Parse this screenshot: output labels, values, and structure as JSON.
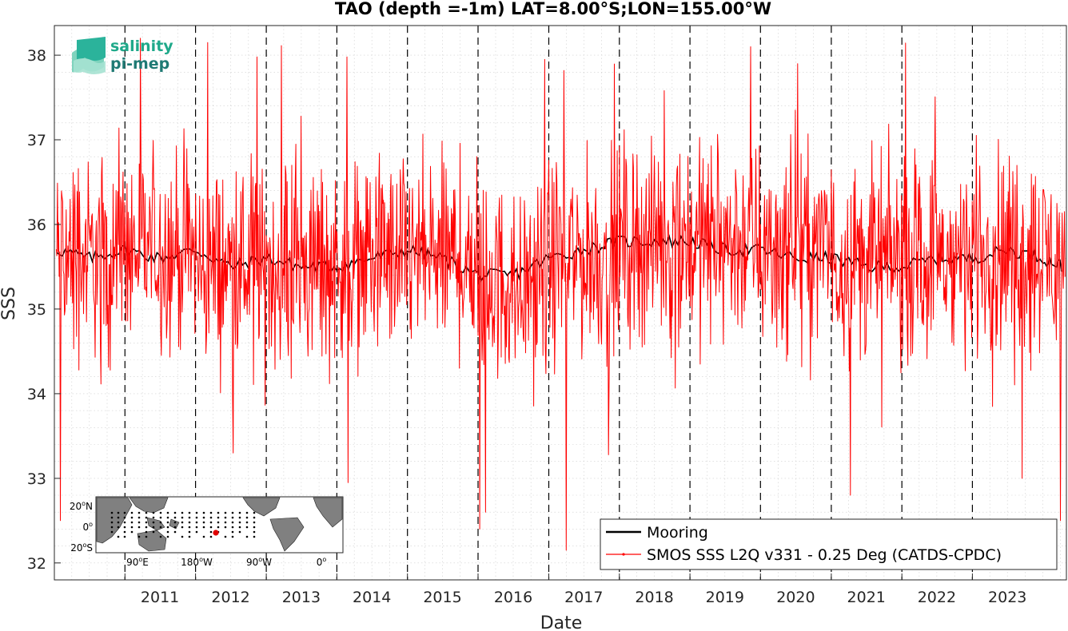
{
  "chart_data": {
    "type": "line",
    "title": "TAO (depth =-1m) LAT=8.00°S;LON=155.00°W",
    "xlabel": "Date",
    "ylabel": "SSS",
    "xlim": [
      "2010-01-01",
      "2024-05-01"
    ],
    "ylim": [
      31.8,
      38.35
    ],
    "x_ticks": [
      "2011",
      "2012",
      "2013",
      "2014",
      "2015",
      "2016",
      "2017",
      "2018",
      "2019",
      "2020",
      "2021",
      "2022",
      "2023"
    ],
    "y_ticks": [
      32,
      33,
      34,
      35,
      36,
      37,
      38
    ],
    "grid": "minor dotted",
    "year_boundaries_dashed": true,
    "legend": {
      "placement": "bottom-right",
      "entries": [
        "Mooring",
        "SMOS SSS L2Q v331 - 0.25 Deg (CATDS-CPDC)"
      ]
    },
    "series": [
      {
        "name": "Mooring",
        "color": "#000000",
        "description_points": [
          [
            "2010-01-15",
            35.7
          ],
          [
            "2010-07-01",
            35.6
          ],
          [
            "2011-01-01",
            35.7
          ],
          [
            "2011-07-01",
            35.6
          ],
          [
            "2012-01-01",
            35.7
          ],
          [
            "2012-07-01",
            35.5
          ],
          [
            "2013-01-01",
            35.6
          ],
          [
            "2013-07-01",
            35.5
          ],
          [
            "2014-01-01",
            35.5
          ],
          [
            "2014-07-01",
            35.6
          ],
          [
            "2015-01-01",
            35.7
          ],
          [
            "2015-07-01",
            35.6
          ],
          [
            "2016-01-01",
            35.4
          ],
          [
            "2016-07-01",
            35.4
          ],
          [
            "2017-01-01",
            35.6
          ],
          [
            "2017-07-01",
            35.7
          ],
          [
            "2018-01-01",
            35.8
          ],
          [
            "2018-07-01",
            35.8
          ],
          [
            "2019-01-01",
            35.8
          ],
          [
            "2019-07-01",
            35.7
          ],
          [
            "2020-01-01",
            35.7
          ],
          [
            "2020-07-01",
            35.6
          ],
          [
            "2021-01-01",
            35.6
          ],
          [
            "2021-07-01",
            35.5
          ],
          [
            "2022-01-01",
            35.5
          ],
          [
            "2022-07-01",
            35.6
          ],
          [
            "2023-01-01",
            35.6
          ],
          [
            "2023-07-01",
            35.7
          ],
          [
            "2024-01-01",
            35.6
          ],
          [
            "2024-04-15",
            35.5
          ]
        ]
      },
      {
        "name": "SMOS SSS L2Q v331 - 0.25 Deg (CATDS-CPDC)",
        "color": "#ff0000",
        "mean_level_by_year": [
          [
            "2010",
            35.6
          ],
          [
            "2011",
            35.7
          ],
          [
            "2012",
            35.5
          ],
          [
            "2013",
            35.5
          ],
          [
            "2014",
            35.6
          ],
          [
            "2015",
            35.6
          ],
          [
            "2016",
            35.3
          ],
          [
            "2017",
            35.6
          ],
          [
            "2018",
            35.8
          ],
          [
            "2019",
            35.8
          ],
          [
            "2020",
            35.7
          ],
          [
            "2021",
            35.6
          ],
          [
            "2022",
            35.6
          ],
          [
            "2023",
            35.7
          ],
          [
            "2024",
            35.6
          ]
        ],
        "spread": 0.85,
        "notable_extremes": [
          [
            "2010-02-01",
            32.5
          ],
          [
            "2012-03-05",
            38.15
          ],
          [
            "2014-03-01",
            32.95
          ],
          [
            "2016-01-10",
            32.4
          ],
          [
            "2016-02-10",
            32.6
          ],
          [
            "2017-04-01",
            32.15
          ],
          [
            "2019-11-10",
            38.1
          ],
          [
            "2021-04-10",
            32.8
          ],
          [
            "2023-09-15",
            33.0
          ],
          [
            "2024-04-01",
            32.5
          ],
          [
            "2016-12-10",
            37.95
          ],
          [
            "2020-07-10",
            37.9
          ]
        ]
      }
    ]
  },
  "logo": {
    "line1": "salinity",
    "line2": "pi-mep"
  },
  "inset_map": {
    "lat_labels": [
      {
        "num": "20",
        "sup": "o",
        "dir": "N"
      },
      {
        "num": "0",
        "sup": "o",
        "dir": ""
      },
      {
        "num": "20",
        "sup": "o",
        "dir": "S"
      }
    ],
    "lon_labels": [
      {
        "num": "90",
        "sup": "o",
        "dir": "E"
      },
      {
        "num": "180",
        "sup": "o",
        "dir": "W"
      },
      {
        "num": "90",
        "sup": "o",
        "dir": "W"
      },
      {
        "num": "0",
        "sup": "o",
        "dir": ""
      }
    ],
    "marker_color": "#e00000"
  }
}
